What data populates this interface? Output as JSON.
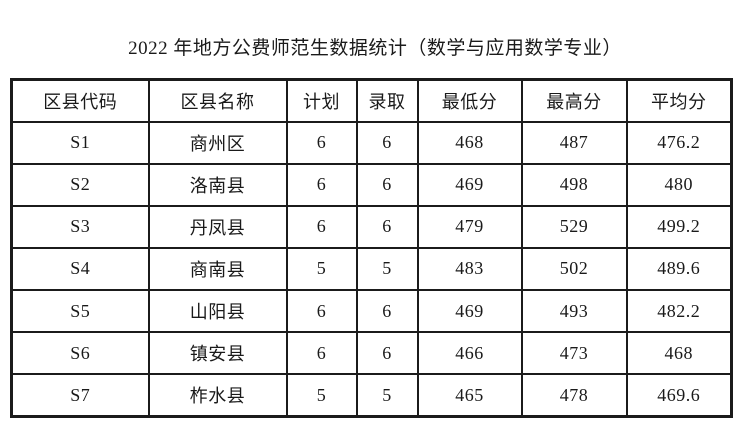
{
  "title": "2022 年地方公费师范生数据统计（数学与应用数学专业）",
  "colors": {
    "background": "#ffffff",
    "text": "#1a1a1a",
    "border": "#1b1b1b"
  },
  "table": {
    "headers": [
      "区县代码",
      "区县名称",
      "计划",
      "录取",
      "最低分",
      "最高分",
      "平均分"
    ],
    "rows": [
      [
        "S1",
        "商州区",
        "6",
        "6",
        "468",
        "487",
        "476.2"
      ],
      [
        "S2",
        "洛南县",
        "6",
        "6",
        "469",
        "498",
        "480"
      ],
      [
        "S3",
        "丹凤县",
        "6",
        "6",
        "479",
        "529",
        "499.2"
      ],
      [
        "S4",
        "商南县",
        "5",
        "5",
        "483",
        "502",
        "489.6"
      ],
      [
        "S5",
        "山阳县",
        "6",
        "6",
        "469",
        "493",
        "482.2"
      ],
      [
        "S6",
        "镇安县",
        "6",
        "6",
        "466",
        "473",
        "468"
      ],
      [
        "S7",
        "柞水县",
        "5",
        "5",
        "465",
        "478",
        "469.6"
      ]
    ]
  }
}
